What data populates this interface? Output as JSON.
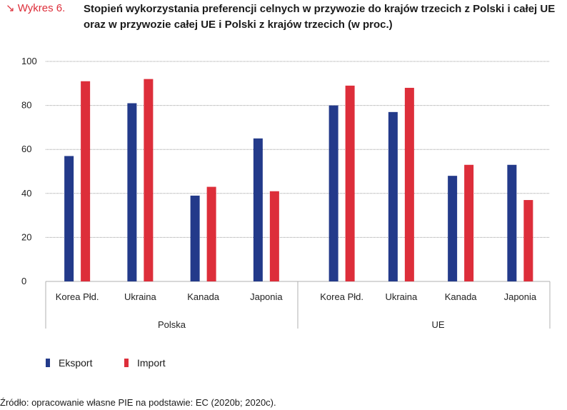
{
  "figure": {
    "label": "↘ Wykres 6.",
    "title": "Stopień wykorzystania preferencji celnych w przywozie do krajów trzecich z Polski i całej UE oraz w przywozie całej UE i Polski z krajów trzecich (w proc.)"
  },
  "colors": {
    "eksport": "#233a8a",
    "import": "#dd2e3a",
    "grid": "#999999",
    "axis": "#b0b0b0"
  },
  "chart_data": {
    "type": "bar",
    "ylim": [
      0,
      100
    ],
    "yticks": [
      0,
      20,
      40,
      60,
      80,
      100
    ],
    "grid": true,
    "legend_placement": "bottom-left",
    "groups": [
      {
        "label": "Polska",
        "categories": [
          "Korea Płd.",
          "Ukraina",
          "Kanada",
          "Japonia"
        ],
        "series": [
          {
            "name": "Eksport",
            "values": [
              57,
              81,
              39,
              65
            ]
          },
          {
            "name": "Import",
            "values": [
              91,
              92,
              43,
              41
            ]
          }
        ]
      },
      {
        "label": "UE",
        "categories": [
          "Korea Płd.",
          "Ukraina",
          "Kanada",
          "Japonia"
        ],
        "series": [
          {
            "name": "Eksport",
            "values": [
              80,
              77,
              48,
              53
            ]
          },
          {
            "name": "Import",
            "values": [
              89,
              88,
              53,
              37
            ]
          }
        ]
      }
    ]
  },
  "legend": [
    {
      "label": "Eksport"
    },
    {
      "label": "Import"
    }
  ],
  "source": "Źródło: opracowanie własne PIE na podstawie: EC (2020b; 2020c)."
}
